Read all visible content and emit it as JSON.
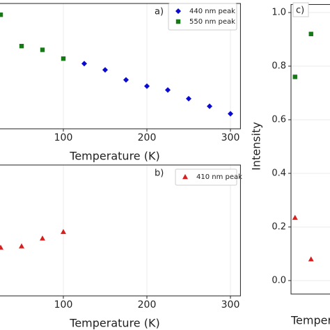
{
  "chart_data": [
    {
      "type": "scatter",
      "panel_label": "a)",
      "x_label": "Temperature (K)",
      "xlim": [
        20,
        312
      ],
      "xticks": [
        100,
        200,
        300
      ],
      "ylim": [
        0,
        1
      ],
      "grid": true,
      "legend": "upper right",
      "series": [
        {
          "name": "440 nm peak",
          "color": "#0a0ad0",
          "marker": "diamond",
          "x": [
            125,
            150,
            175,
            200,
            225,
            250,
            275,
            300
          ],
          "values": [
            0.52,
            0.47,
            0.39,
            0.34,
            0.31,
            0.24,
            0.18,
            0.12
          ]
        },
        {
          "name": "550 nm peak",
          "color": "#157a15",
          "marker": "square",
          "x": [
            25,
            50,
            75,
            100
          ],
          "values": [
            0.91,
            0.66,
            0.63,
            0.56
          ]
        }
      ]
    },
    {
      "type": "scatter",
      "panel_label": "b)",
      "x_label": "Temperature (K)",
      "xlim": [
        20,
        312
      ],
      "xticks": [
        100,
        200,
        300
      ],
      "ylim": [
        0,
        1
      ],
      "grid": true,
      "legend": "upper right",
      "series": [
        {
          "name": "410 nm peak",
          "color": "#d62020",
          "marker": "triangle",
          "x": [
            25,
            50,
            75,
            100
          ],
          "values": [
            0.37,
            0.38,
            0.44,
            0.49
          ]
        }
      ]
    },
    {
      "type": "category-scatter",
      "panel_label": "c)",
      "x_label": "Temperature (K)",
      "y_label": "Intensity",
      "categories": [
        null,
        null
      ],
      "ylim": [
        -0.05,
        1.03
      ],
      "yticks": [
        {
          "value": 0,
          "label": "0.0"
        },
        0.2,
        0.4,
        0.6,
        0.8,
        {
          "value": 1,
          "label": "1.0"
        }
      ],
      "grid": true,
      "series": [
        {
          "color": "#157a15",
          "marker": "square",
          "values": [
            0.76,
            0.92
          ]
        },
        {
          "color": "#d62020",
          "marker": "triangle",
          "values": [
            0.235,
            0.08
          ]
        }
      ]
    }
  ]
}
